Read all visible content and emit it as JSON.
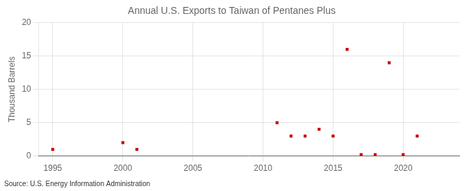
{
  "chart_data": {
    "type": "scatter",
    "title": "Annual U.S. Exports to Taiwan of Pentanes Plus",
    "ylabel": "Thousand Barrels",
    "source": "Source: U.S. Energy Information Administration",
    "x": [
      1995,
      2000,
      2001,
      2011,
      2012,
      2013,
      2014,
      2015,
      2016,
      2017,
      2018,
      2019,
      2020,
      2021
    ],
    "values": [
      1,
      2,
      1,
      5,
      3,
      3,
      4,
      3,
      16,
      0.2,
      0.2,
      14,
      0.2,
      3
    ],
    "color": "#cc0000",
    "marker": "square",
    "xlim": [
      1994,
      2024
    ],
    "xticks": [
      1995,
      2000,
      2005,
      2010,
      2015,
      2020
    ],
    "ylim": [
      0,
      20
    ],
    "yticks": [
      0,
      5,
      10,
      15,
      20
    ],
    "grid": true
  }
}
